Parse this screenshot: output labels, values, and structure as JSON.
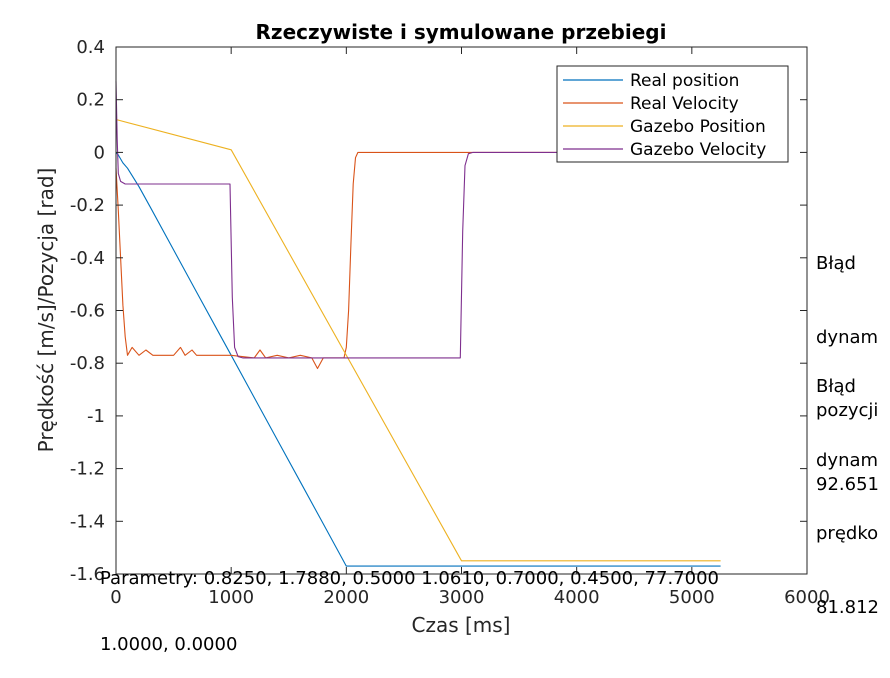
{
  "chart_data": {
    "type": "line",
    "title": "Rzeczywiste i symulowane przebiegi",
    "xlabel": "Czas [ms]",
    "ylabel": "Prędkość [m/s]/Pozycja [rad]",
    "xlim": [
      0,
      6000
    ],
    "ylim": [
      -1.6,
      0.4
    ],
    "xticks": [
      "0",
      "1000",
      "2000",
      "3000",
      "4000",
      "5000",
      "6000"
    ],
    "yticks": [
      "0.4",
      "0.2",
      "0",
      "-0.2",
      "-0.4",
      "-0.6",
      "-0.8",
      "-1",
      "-1.2",
      "-1.4",
      "-1.6"
    ],
    "grid": false,
    "legend_position": "top-right",
    "series": [
      {
        "name": "Real position",
        "color": "#0072BD",
        "x": [
          0,
          20,
          60,
          100,
          200,
          300,
          500,
          700,
          900,
          1000,
          1200,
          1400,
          1600,
          1800,
          1950,
          2000,
          2100,
          3000,
          4000,
          5000,
          5250
        ],
        "y": [
          0.0,
          -0.01,
          -0.04,
          -0.06,
          -0.13,
          -0.21,
          -0.37,
          -0.53,
          -0.69,
          -0.77,
          -0.93,
          -1.09,
          -1.25,
          -1.41,
          -1.53,
          -1.57,
          -1.57,
          -1.57,
          -1.57,
          -1.57,
          -1.57
        ]
      },
      {
        "name": "Real Velocity",
        "color": "#D95319",
        "x": [
          0,
          20,
          40,
          60,
          80,
          100,
          140,
          200,
          260,
          320,
          400,
          500,
          560,
          600,
          660,
          700,
          800,
          900,
          1000,
          1200,
          1250,
          1300,
          1400,
          1500,
          1600,
          1700,
          1750,
          1800,
          1900,
          1980,
          2000,
          2020,
          2040,
          2060,
          2080,
          2100,
          2200,
          3000,
          4000,
          5000,
          5250
        ],
        "y": [
          -0.06,
          -0.22,
          -0.4,
          -0.58,
          -0.7,
          -0.77,
          -0.74,
          -0.77,
          -0.75,
          -0.77,
          -0.77,
          -0.77,
          -0.74,
          -0.77,
          -0.75,
          -0.77,
          -0.77,
          -0.77,
          -0.77,
          -0.78,
          -0.75,
          -0.78,
          -0.77,
          -0.78,
          -0.77,
          -0.78,
          -0.82,
          -0.78,
          -0.78,
          -0.78,
          -0.74,
          -0.6,
          -0.35,
          -0.12,
          -0.02,
          0.0,
          0.0,
          0.0,
          0.0,
          0.0,
          0.0
        ]
      },
      {
        "name": "Gazebo Position",
        "color": "#EDB120",
        "x": [
          0,
          1000,
          3000,
          4000,
          5000,
          5250
        ],
        "y": [
          0.125,
          0.01,
          -1.55,
          -1.55,
          -1.55,
          -1.55
        ]
      },
      {
        "name": "Gazebo Velocity",
        "color": "#7E2F8E",
        "x": [
          0,
          10,
          20,
          40,
          80,
          120,
          990,
          1010,
          1030,
          1060,
          1100,
          2000,
          2990,
          3010,
          3030,
          3060,
          3100,
          4000,
          5000,
          5250
        ],
        "y": [
          0.27,
          0.05,
          -0.08,
          -0.11,
          -0.12,
          -0.12,
          -0.12,
          -0.55,
          -0.74,
          -0.775,
          -0.78,
          -0.78,
          -0.78,
          -0.3,
          -0.05,
          -0.005,
          0.0,
          0.0,
          0.0,
          0.0
        ]
      }
    ]
  },
  "side_text": {
    "position_error": [
      "Błąd",
      "dynam",
      "pozycji",
      "92.651"
    ],
    "velocity_error": [
      "Błąd",
      "dynam",
      "prędko",
      "81.812"
    ]
  },
  "parameters": {
    "line1": "Parametry: 0.8250, 1.7880, 0.5000 1.0610, 0.7000, 0.4500, 77.7000",
    "line2": "1.0000, 0.0000"
  }
}
